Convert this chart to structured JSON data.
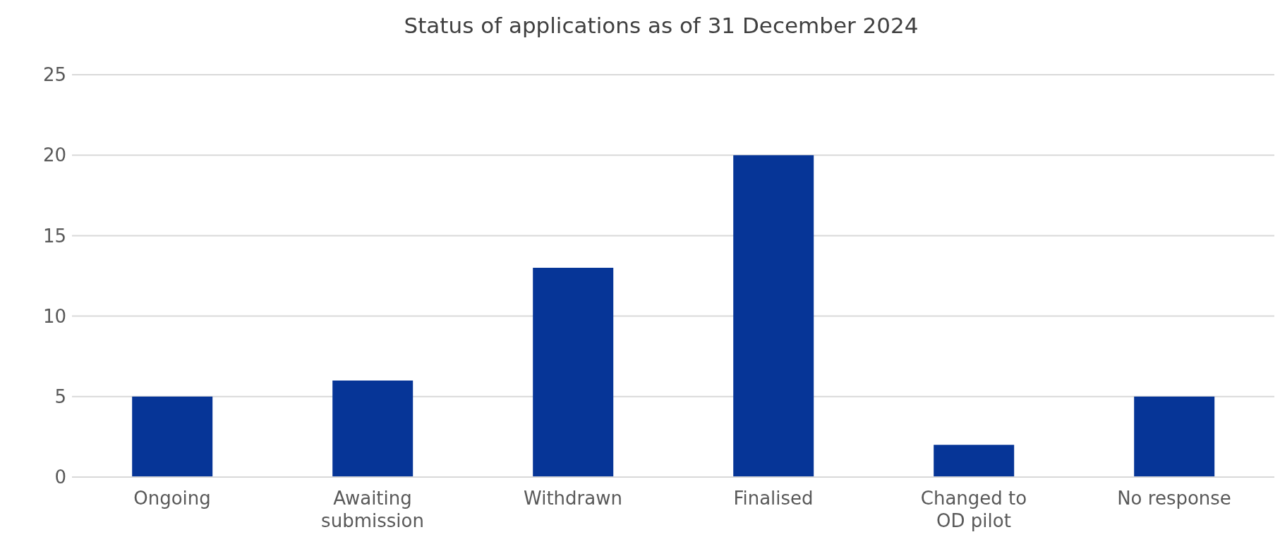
{
  "chart_data": {
    "type": "bar",
    "title": "Status of applications as of 31 December 2024",
    "categories": [
      "Ongoing",
      "Awaiting submission",
      "Withdrawn",
      "Finalised",
      "Changed to OD pilot",
      "No response"
    ],
    "values": [
      5,
      6,
      13,
      20,
      2,
      5
    ],
    "color": "#063597",
    "ylim": [
      0,
      25
    ],
    "yticks": [
      0,
      5,
      10,
      15,
      20,
      25
    ],
    "grid": "y"
  }
}
